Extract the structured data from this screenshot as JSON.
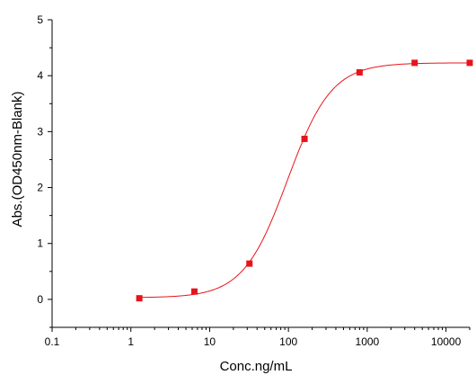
{
  "chart_data": {
    "type": "scatter",
    "xlabel": "Conc.ng/mL",
    "ylabel": "Abs.(OD450nm-Blank)",
    "x_scale": "log",
    "xlim": [
      0.1,
      20000
    ],
    "ylim": [
      -0.5,
      5
    ],
    "x_ticks": [
      "0.1",
      "1",
      "10",
      "100",
      "1000",
      "10000"
    ],
    "y_ticks": [
      "0",
      "1",
      "2",
      "3",
      "4",
      "5"
    ],
    "grid": false,
    "series": [
      {
        "points": [
          {
            "x": 1.28,
            "y": 0.02
          },
          {
            "x": 6.4,
            "y": 0.14
          },
          {
            "x": 32,
            "y": 0.64
          },
          {
            "x": 160,
            "y": 2.87
          },
          {
            "x": 800,
            "y": 4.06
          },
          {
            "x": 4000,
            "y": 4.23
          },
          {
            "x": 20000,
            "y": 4.23
          }
        ],
        "fit": "four-parameter logistic",
        "color": "#e8141b"
      }
    ]
  }
}
